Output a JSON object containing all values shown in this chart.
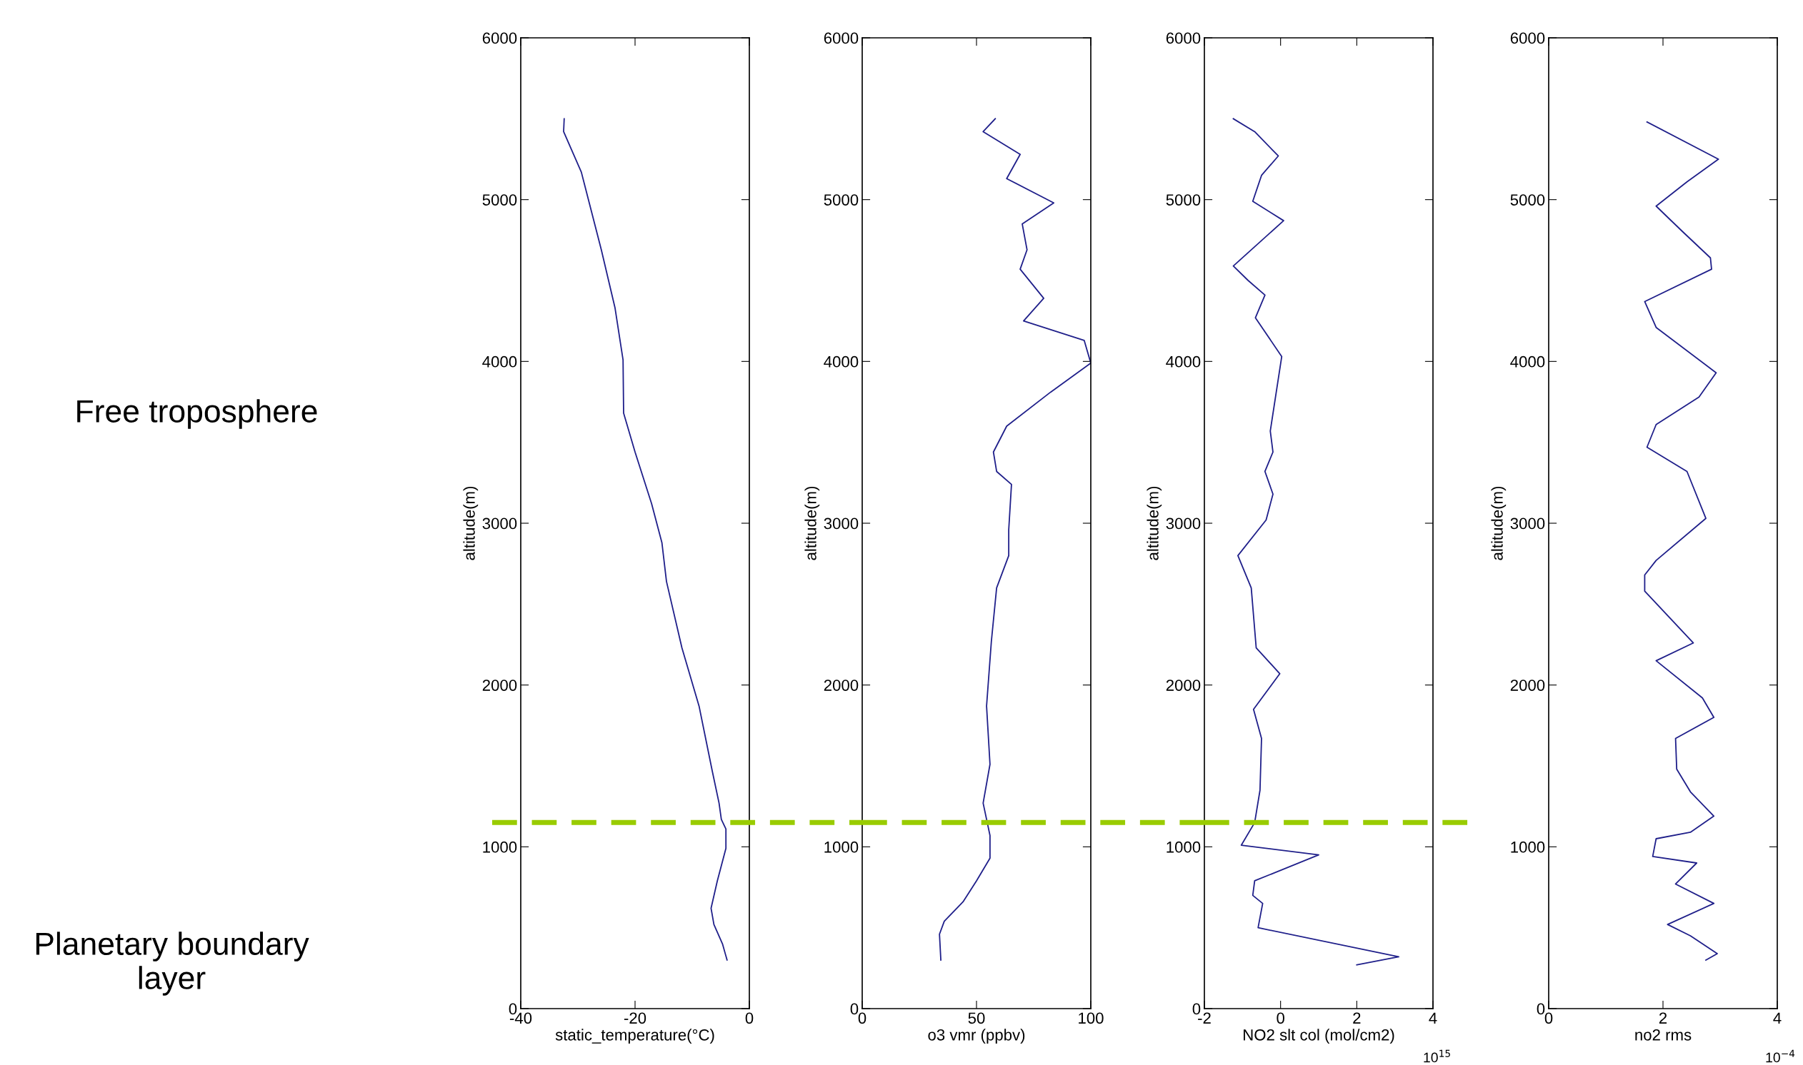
{
  "chart_data": [
    {
      "type": "line",
      "xlabel": "static_temperature(°C)",
      "ylabel": "altitude(m)",
      "xlim": [
        -40,
        0
      ],
      "xticks": [
        -40,
        -20,
        0
      ],
      "ylim": [
        0,
        6000
      ],
      "yticks": [
        0,
        1000,
        2000,
        3000,
        4000,
        5000,
        6000
      ],
      "grid": false,
      "series": [
        {
          "color": "#1f1f8a",
          "x": [
            -32.4,
            -32.5,
            -29.4,
            -25.9,
            -23.5,
            -22.1,
            -22.0,
            -20.0,
            -17.1,
            -15.3,
            -14.5,
            -11.8,
            -8.8,
            -6.5,
            -5.3,
            -4.9,
            -4.1,
            -4.1,
            -5.6,
            -6.7,
            -6.2,
            -4.7,
            -3.9
          ],
          "values": [
            5500,
            5420,
            5170,
            4690,
            4330,
            4010,
            3680,
            3440,
            3120,
            2880,
            2640,
            2230,
            1870,
            1470,
            1270,
            1170,
            1110,
            990,
            790,
            620,
            520,
            400,
            300
          ]
        }
      ],
      "ref_lines": [
        {
          "axis": "y",
          "value": 1150,
          "color": "#99cc00",
          "line_style": "dashed"
        }
      ],
      "annotations": [
        "Free troposphere",
        "Planetary boundary layer"
      ]
    },
    {
      "type": "line",
      "xlabel": "o3 vmr (ppbv)",
      "ylabel": "altitude(m)",
      "xlim": [
        0,
        100
      ],
      "xticks": [
        0,
        50,
        100
      ],
      "ylim": [
        0,
        6000
      ],
      "yticks": [
        0,
        1000,
        2000,
        3000,
        4000,
        5000,
        6000
      ],
      "grid": false,
      "series": [
        {
          "color": "#1f1f8a",
          "x": [
            58.2,
            52.9,
            69.1,
            63.2,
            83.8,
            70.0,
            72.1,
            69.1,
            79.4,
            70.6,
            97.1,
            100,
            82.4,
            63.2,
            57.4,
            58.8,
            65.3,
            64.1,
            64.1,
            58.8,
            56.5,
            54.4,
            55.9,
            52.9,
            55.9,
            55.9,
            50.0,
            44.1,
            35.9,
            33.8,
            34.4
          ],
          "values": [
            5500,
            5420,
            5280,
            5130,
            4980,
            4850,
            4690,
            4570,
            4390,
            4250,
            4130,
            3990,
            3810,
            3600,
            3440,
            3320,
            3240,
            2960,
            2800,
            2600,
            2270,
            1870,
            1510,
            1270,
            1070,
            930,
            790,
            660,
            540,
            460,
            300
          ]
        }
      ],
      "ref_lines": [
        {
          "axis": "y",
          "value": 1150,
          "color": "#99cc00",
          "line_style": "dashed"
        }
      ]
    },
    {
      "type": "line",
      "xlabel": "NO2 slt col (mol/cm2)",
      "ylabel": "altitude(m)",
      "xlim": [
        -2,
        4
      ],
      "xticks": [
        -2,
        0,
        2,
        4
      ],
      "ylim": [
        0,
        6000
      ],
      "yticks": [
        0,
        1000,
        2000,
        3000,
        4000,
        5000,
        6000
      ],
      "grid": false,
      "series": [
        {
          "color": "#1f1f8a",
          "x": [
            -1.24,
            -0.68,
            -0.06,
            -0.5,
            -0.73,
            0.08,
            -1.24,
            -0.85,
            -0.41,
            -0.66,
            0.03,
            -0.27,
            -0.2,
            -0.41,
            -0.2,
            -0.38,
            -1.12,
            -0.77,
            -0.64,
            -0.02,
            -0.71,
            -0.5,
            -0.54,
            -0.68,
            -1.03,
            1.0,
            -0.68,
            -0.73,
            -0.47,
            -0.59,
            3.1,
            2.0
          ],
          "values": [
            5500,
            5420,
            5270,
            5150,
            4990,
            4870,
            4590,
            4500,
            4410,
            4270,
            4030,
            3570,
            3440,
            3320,
            3180,
            3020,
            2800,
            2600,
            2230,
            2070,
            1850,
            1670,
            1350,
            1150,
            1010,
            950,
            790,
            700,
            650,
            500,
            320,
            270
          ]
        }
      ],
      "ref_lines": [
        {
          "axis": "y",
          "value": 1150,
          "color": "#99cc00",
          "line_style": "dashed"
        }
      ],
      "annotations": [
        "10$^{15}$"
      ]
    },
    {
      "type": "line",
      "xlabel": "no2 rms",
      "ylabel": "altitude(m)",
      "xlim": [
        0,
        4
      ],
      "xticks": [
        0,
        2,
        4
      ],
      "ylim": [
        0,
        6000
      ],
      "yticks": [
        0,
        1000,
        2000,
        3000,
        4000,
        5000,
        6000
      ],
      "grid": false,
      "series": [
        {
          "color": "#1f1f8a",
          "x": [
            1.72,
            2.97,
            2.42,
            1.88,
            2.32,
            2.83,
            2.85,
            1.68,
            1.88,
            2.93,
            2.63,
            1.88,
            1.72,
            2.42,
            2.75,
            1.88,
            1.68,
            1.68,
            2.53,
            1.88,
            2.69,
            2.89,
            2.22,
            2.24,
            2.48,
            2.89,
            2.48,
            1.88,
            1.82,
            2.59,
            2.22,
            2.89,
            2.08,
            2.48,
            2.95,
            2.75
          ],
          "values": [
            5480,
            5250,
            5110,
            4960,
            4810,
            4640,
            4570,
            4370,
            4210,
            3930,
            3780,
            3610,
            3470,
            3320,
            3030,
            2770,
            2680,
            2580,
            2260,
            2150,
            1920,
            1800,
            1670,
            1480,
            1340,
            1190,
            1090,
            1050,
            940,
            900,
            770,
            650,
            520,
            450,
            340,
            300
          ]
        }
      ],
      "annotations": [
        "10$^{−4}$"
      ]
    }
  ]
}
